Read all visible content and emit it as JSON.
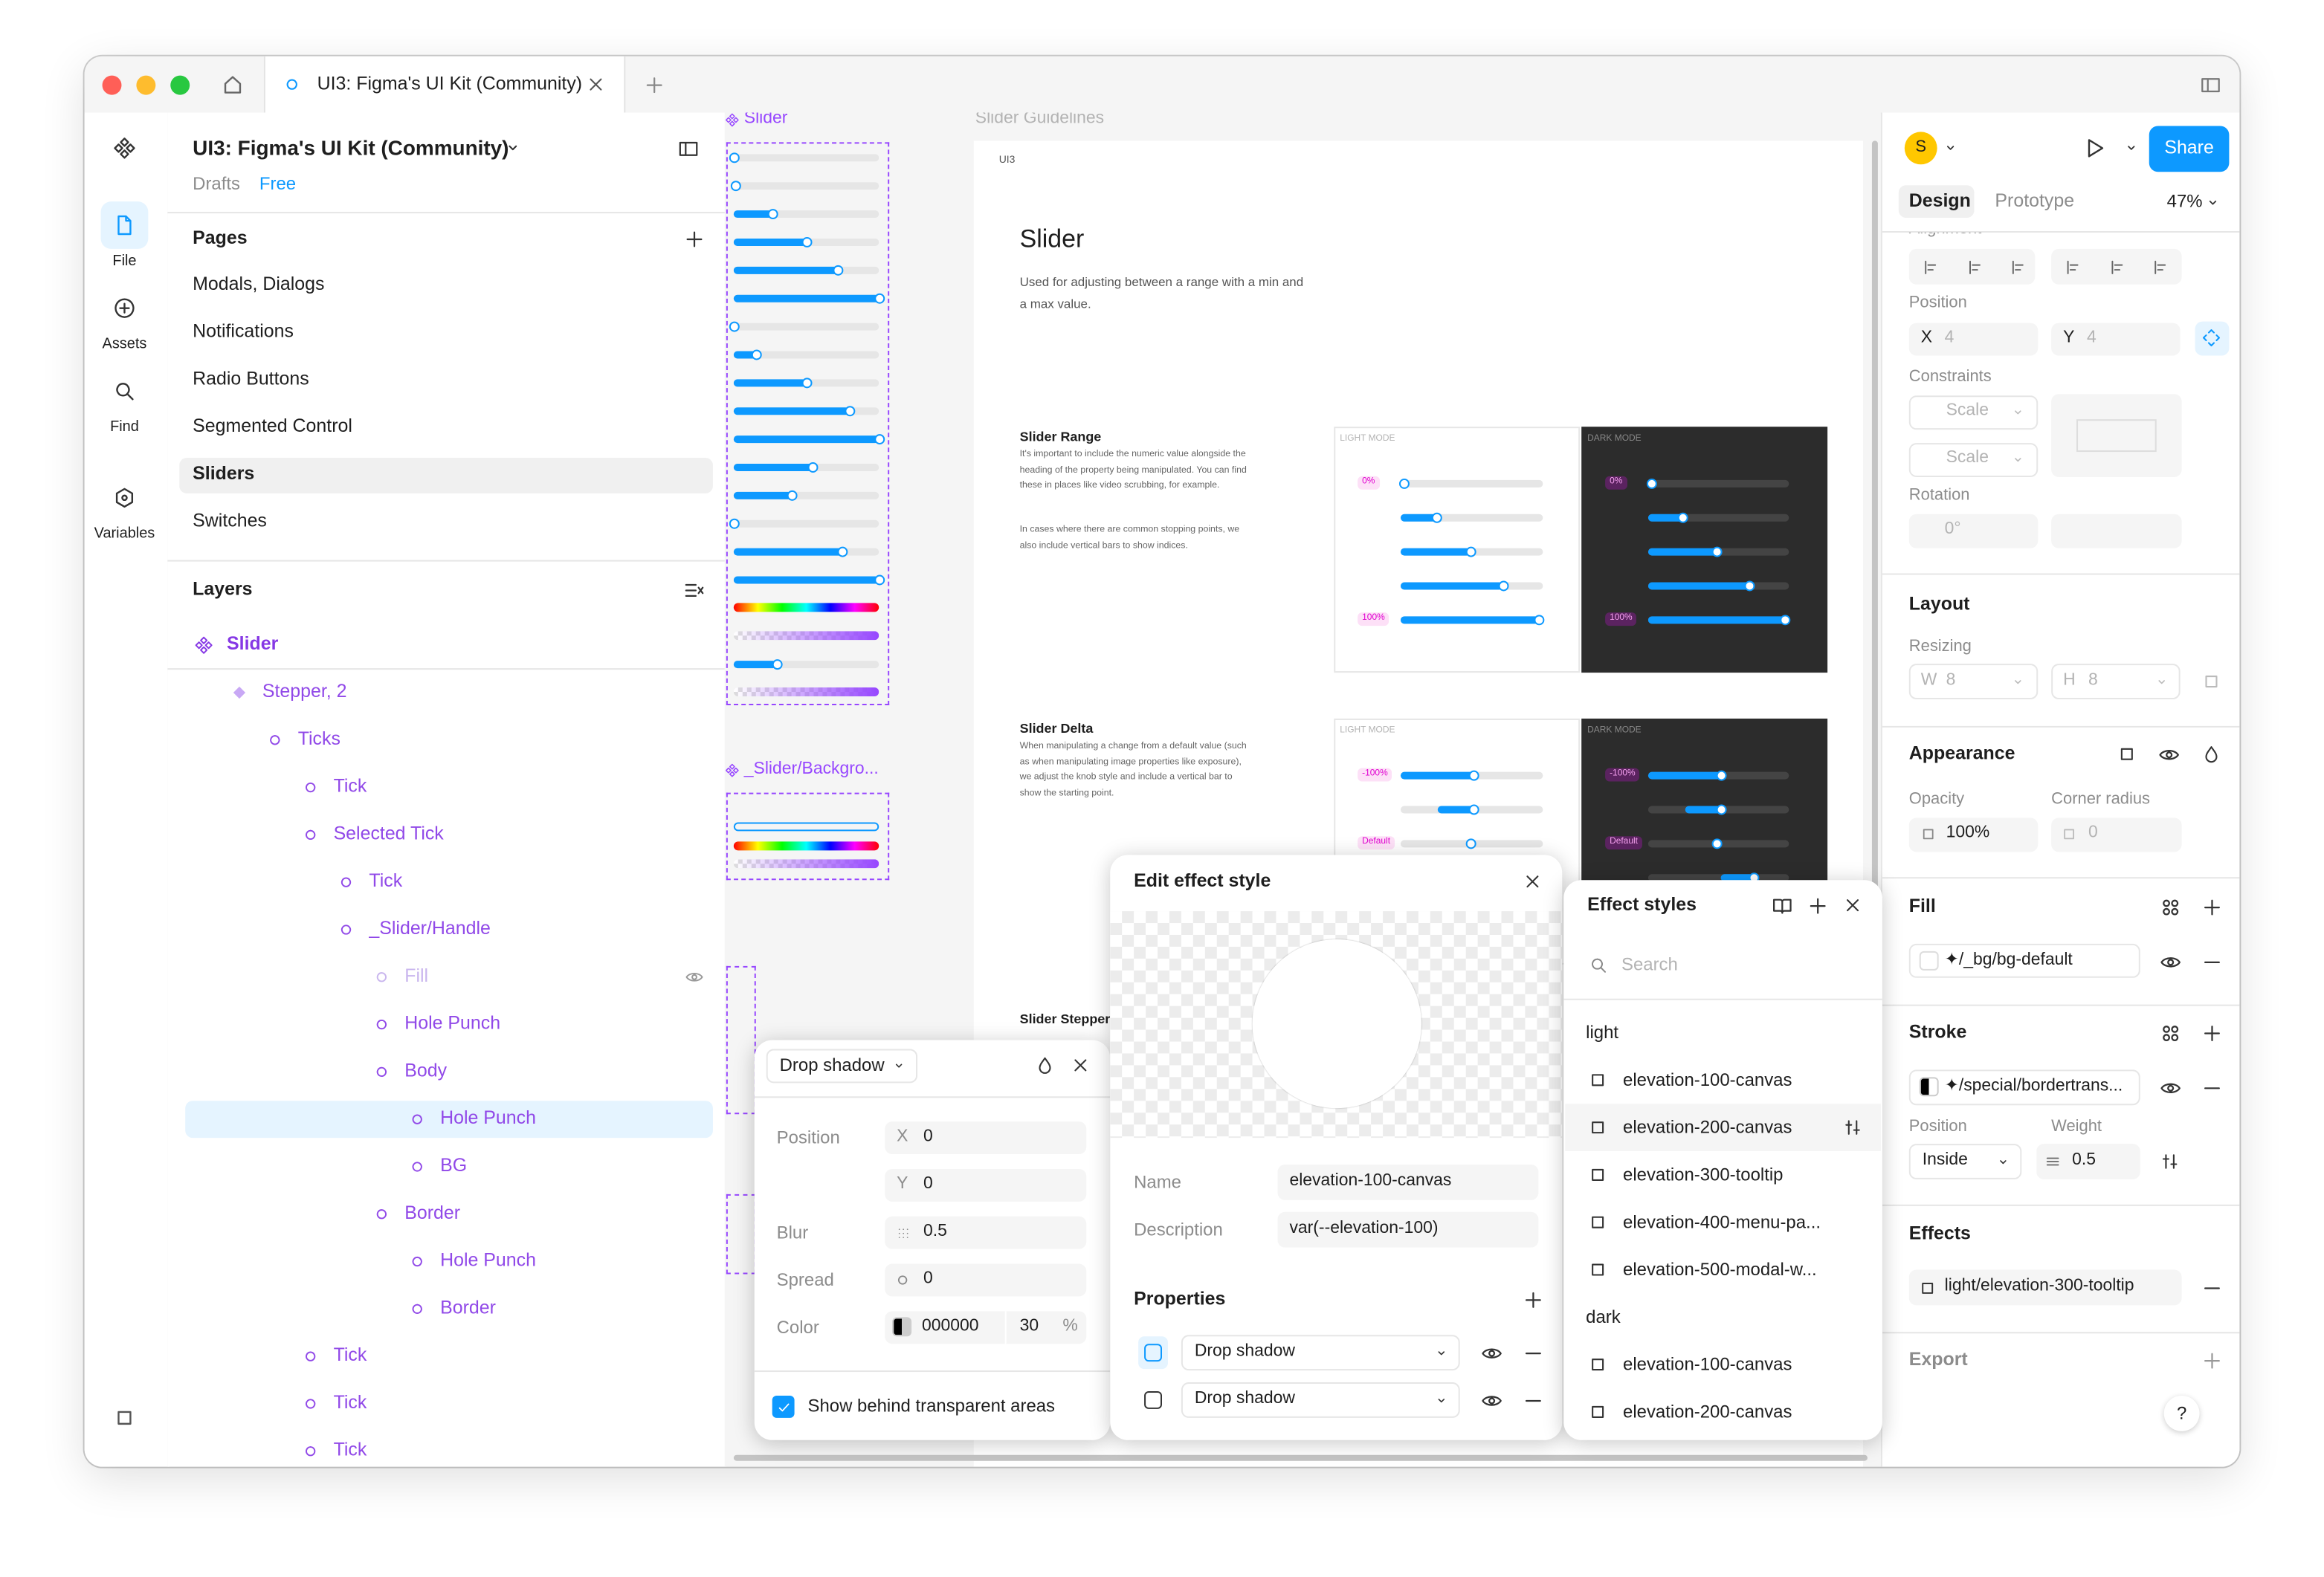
{
  "tabs": {
    "active": "UI3: Figma's UI Kit (Community)"
  },
  "toolbar": {
    "items": [
      "File",
      "Assets",
      "Find",
      "Variables"
    ]
  },
  "file": {
    "name": "UI3: Figma's UI Kit (Community)",
    "location": "Drafts",
    "plan": "Free"
  },
  "pages": {
    "title": "Pages",
    "items": [
      "Modals, Dialogs",
      "Notifications",
      "Radio Buttons",
      "Segmented Control",
      "Sliders",
      "Switches"
    ]
  },
  "layers": {
    "title": "Layers",
    "tree": {
      "label": "Slider",
      "children": [
        {
          "label": "Stepper, 2",
          "children": [
            {
              "label": "Ticks",
              "children": [
                {
                  "label": "Tick"
                },
                {
                  "label": "Selected Tick",
                  "children": [
                    {
                      "label": "Tick"
                    },
                    {
                      "label": "_Slider/Handle",
                      "children": [
                        {
                          "label": "Fill"
                        },
                        {
                          "label": "Hole Punch"
                        },
                        {
                          "label": "Body",
                          "children": [
                            {
                              "label": "Hole Punch"
                            },
                            {
                              "label": "BG"
                            }
                          ]
                        },
                        {
                          "label": "Border",
                          "children": [
                            {
                              "label": "Hole Punch"
                            },
                            {
                              "label": "Border"
                            }
                          ]
                        }
                      ]
                    }
                  ]
                },
                {
                  "label": "Tick"
                },
                {
                  "label": "Tick"
                },
                {
                  "label": "Tick"
                }
              ]
            }
          ]
        }
      ]
    }
  },
  "canvas": {
    "frames": [
      "Slider",
      "Slider Guidelines",
      "_Slider/Backgro..."
    ],
    "doc": {
      "tag": "UI3",
      "title": "Slider",
      "description": "Used for adjusting between a range with a min and a max value.",
      "sections": [
        {
          "title": "Slider Range",
          "body": [
            "It's important to include the numeric value alongside the heading of the property being manipulated. You can find these in places like video scrubbing, for example.",
            "In cases where there are common stopping points, we also include vertical bars to show indices."
          ],
          "light_label": "LIGHT MODE",
          "dark_label": "DARK MODE",
          "light_pills": [
            "0%",
            "100%"
          ],
          "dark_pills": [
            "0%",
            "100%"
          ]
        },
        {
          "title": "Slider Delta",
          "body": [
            "When manipulating a change from a default value (such as when manipulating image properties like exposure), we adjust the knob style and include a vertical bar to show the starting point."
          ],
          "light_label": "LIGHT MODE",
          "dark_label": "DARK MODE",
          "light_pills": [
            "-100%",
            "Default"
          ],
          "dark_pills": [
            "-100%",
            "Default"
          ]
        },
        {
          "title": "Slider Stepper"
        }
      ]
    }
  },
  "design_panel": {
    "avatar": "S",
    "share": "Share",
    "tabs": [
      "Design",
      "Prototype"
    ],
    "zoom": "47%",
    "alignment": "Alignment",
    "position": {
      "label": "Position",
      "x_label": "X",
      "x": "4",
      "y_label": "Y",
      "y": "4"
    },
    "constraints": {
      "label": "Constraints",
      "horizontal": "Scale",
      "vertical": "Scale"
    },
    "rotation": {
      "label": "Rotation",
      "value": "0°"
    },
    "layout": {
      "title": "Layout",
      "resizing": "Resizing",
      "w_label": "W",
      "w": "8",
      "h_label": "H",
      "h": "8"
    },
    "appearance": {
      "title": "Appearance",
      "opacity_label": "Opacity",
      "opacity": "100%",
      "radius_label": "Corner radius",
      "radius": "0"
    },
    "fill": {
      "title": "Fill",
      "style": "✦/_bg/bg-default"
    },
    "stroke": {
      "title": "Stroke",
      "style": "✦/special/bordertrans...",
      "position_label": "Position",
      "position": "Inside",
      "weight_label": "Weight",
      "weight": "0.5"
    },
    "effects": {
      "title": "Effects",
      "style": "light/elevation-300-tooltip"
    },
    "export": {
      "title": "Export"
    },
    "help": "?"
  },
  "shadow_popover": {
    "type": "Drop shadow",
    "position_label": "Position",
    "x_label": "X",
    "x": "0",
    "y_label": "Y",
    "y": "0",
    "blur_label": "Blur",
    "blur": "0.5",
    "spread_label": "Spread",
    "spread": "0",
    "color_label": "Color",
    "color": "000000",
    "opacity": "30",
    "opacity_unit": "%",
    "behind": "Show behind transparent areas"
  },
  "edit_style": {
    "title": "Edit effect style",
    "name_label": "Name",
    "name": "elevation-100-canvas",
    "description_label": "Description",
    "description": "var(--elevation-100)",
    "properties": "Properties",
    "effects": [
      "Drop shadow",
      "Drop shadow"
    ]
  },
  "effect_styles": {
    "title": "Effect styles",
    "search": "Search",
    "groups": [
      {
        "name": "light",
        "items": [
          "elevation-100-canvas",
          "elevation-200-canvas",
          "elevation-300-tooltip",
          "elevation-400-menu-pa...",
          "elevation-500-modal-w..."
        ]
      },
      {
        "name": "dark",
        "items": [
          "elevation-100-canvas",
          "elevation-200-canvas"
        ]
      }
    ]
  }
}
